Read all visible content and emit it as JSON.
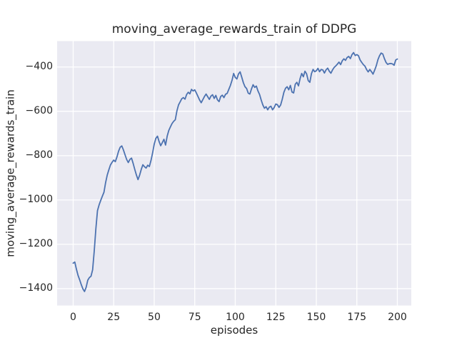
{
  "figure": {
    "title": "moving_average_rewards_train of DDPG",
    "xlabel": "episodes",
    "ylabel": "moving_average_rewards_train"
  },
  "style": {
    "line_color": "#4c72b0",
    "axes_background": "#eaeaf2",
    "grid_color": "#ffffff",
    "figure_background": "#ffffff",
    "text_color": "#262626"
  },
  "chart_data": {
    "type": "line",
    "title": "moving_average_rewards_train of DDPG",
    "xlabel": "episodes",
    "ylabel": "moving_average_rewards_train",
    "grid": true,
    "legend": false,
    "x_ticks": [
      0,
      25,
      50,
      75,
      100,
      125,
      150,
      175,
      200
    ],
    "x_tick_labels": [
      "0",
      "25",
      "50",
      "75",
      "100",
      "125",
      "150",
      "175",
      "200"
    ],
    "y_ticks": [
      -400,
      -600,
      -800,
      -1000,
      -1200,
      -1400
    ],
    "y_tick_labels": [
      "−400",
      "−600",
      "−800",
      "−1000",
      "−1200",
      "−1400"
    ],
    "xlim": [
      -9.9,
      208.6
    ],
    "ylim": [
      -1476,
      -283
    ],
    "series": [
      {
        "name": "moving_average_rewards_train",
        "color": "#4c72b0",
        "x_start": 0,
        "x_step": 1,
        "values": [
          -1285,
          -1280,
          -1312,
          -1340,
          -1360,
          -1382,
          -1401,
          -1413,
          -1394,
          -1362,
          -1350,
          -1344,
          -1315,
          -1230,
          -1130,
          -1048,
          -1022,
          -1002,
          -983,
          -965,
          -922,
          -888,
          -864,
          -842,
          -830,
          -820,
          -827,
          -806,
          -780,
          -762,
          -756,
          -774,
          -796,
          -817,
          -831,
          -817,
          -811,
          -835,
          -862,
          -887,
          -908,
          -888,
          -862,
          -841,
          -850,
          -856,
          -843,
          -849,
          -822,
          -788,
          -748,
          -722,
          -712,
          -736,
          -755,
          -741,
          -726,
          -752,
          -712,
          -686,
          -670,
          -655,
          -645,
          -638,
          -598,
          -571,
          -557,
          -543,
          -538,
          -545,
          -524,
          -514,
          -521,
          -501,
          -508,
          -503,
          -517,
          -533,
          -549,
          -561,
          -547,
          -533,
          -522,
          -534,
          -546,
          -531,
          -525,
          -542,
          -528,
          -548,
          -556,
          -533,
          -527,
          -538,
          -523,
          -519,
          -501,
          -483,
          -460,
          -429,
          -447,
          -454,
          -431,
          -422,
          -446,
          -471,
          -489,
          -497,
          -518,
          -522,
          -499,
          -480,
          -492,
          -486,
          -508,
          -524,
          -549,
          -571,
          -586,
          -579,
          -593,
          -581,
          -577,
          -593,
          -583,
          -567,
          -570,
          -582,
          -571,
          -545,
          -514,
          -496,
          -489,
          -503,
          -483,
          -513,
          -517,
          -478,
          -469,
          -485,
          -452,
          -429,
          -444,
          -419,
          -431,
          -461,
          -469,
          -430,
          -411,
          -421,
          -417,
          -406,
          -421,
          -411,
          -413,
          -427,
          -413,
          -405,
          -419,
          -428,
          -413,
          -402,
          -395,
          -387,
          -378,
          -389,
          -372,
          -363,
          -370,
          -357,
          -352,
          -362,
          -344,
          -335,
          -348,
          -344,
          -349,
          -368,
          -379,
          -389,
          -396,
          -411,
          -422,
          -411,
          -421,
          -432,
          -414,
          -394,
          -367,
          -349,
          -337,
          -341,
          -362,
          -379,
          -388,
          -385,
          -384,
          -386,
          -392,
          -368,
          -364
        ]
      }
    ]
  }
}
